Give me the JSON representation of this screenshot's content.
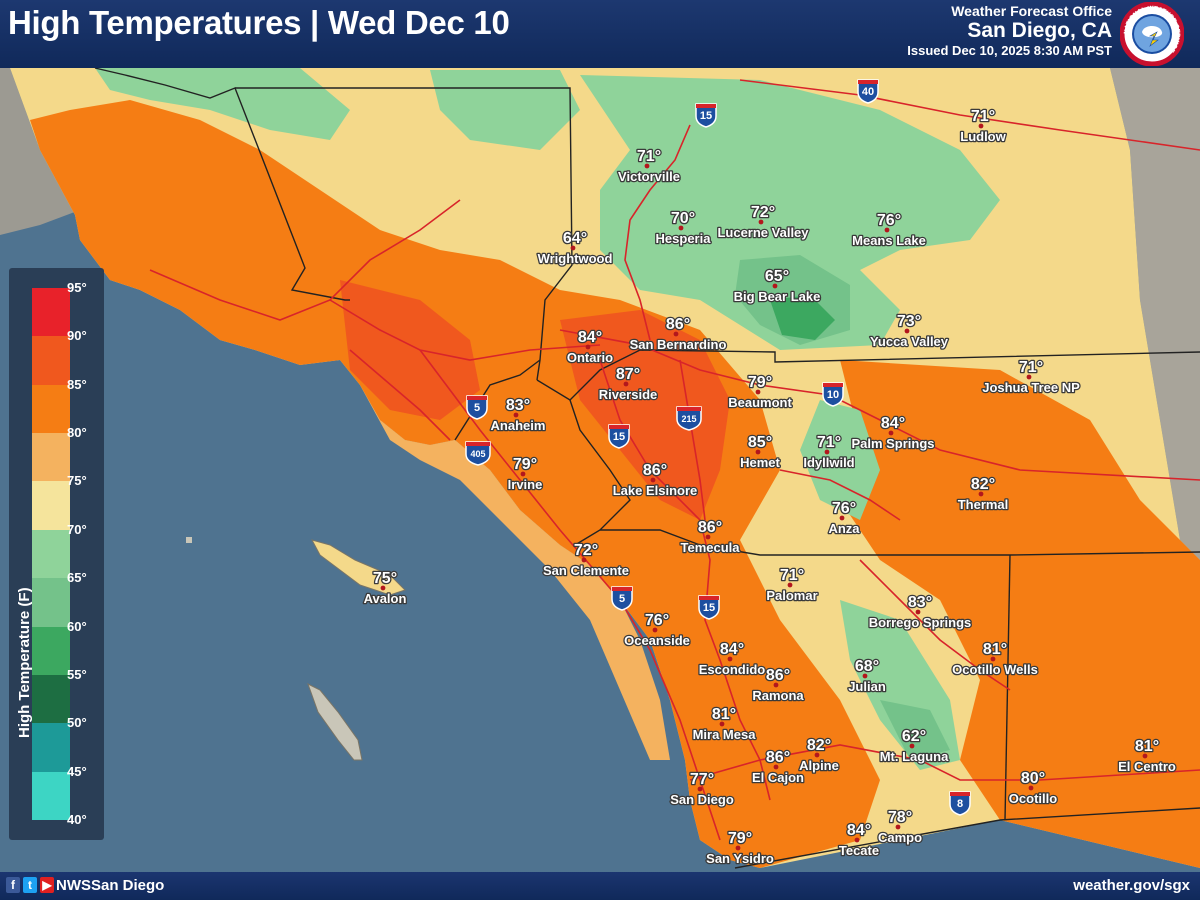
{
  "header": {
    "title": "High Temperatures | Wed Dec 10",
    "office_line1": "Weather Forecast Office",
    "office_line2": "San Diego, CA",
    "issued": "Issued Dec 10, 2025 8:30 AM PST"
  },
  "seal": {
    "icon": "nws-seal-icon",
    "text": "NATIONAL WEATHER SERVICE"
  },
  "legend": {
    "title": "High Temperature (F)",
    "ticks": [
      "95°",
      "90°",
      "85°",
      "80°",
      "75°",
      "70°",
      "65°",
      "60°",
      "55°",
      "50°",
      "45°",
      "40°"
    ],
    "colors": [
      "#e8222a",
      "#f0581e",
      "#f57d14",
      "#f4b25f",
      "#f5e49c",
      "#8fd39a",
      "#74c28a",
      "#3ca860",
      "#1d6e42",
      "#1d9a98",
      "#3dd5c4"
    ]
  },
  "cities": [
    {
      "name": "Ludlow",
      "temp": "71°"
    },
    {
      "name": "Victorville",
      "temp": "71°"
    },
    {
      "name": "Hesperia",
      "temp": "70°"
    },
    {
      "name": "Lucerne Valley",
      "temp": "72°"
    },
    {
      "name": "Means Lake",
      "temp": "76°"
    },
    {
      "name": "Wrightwood",
      "temp": "64°"
    },
    {
      "name": "Big Bear Lake",
      "temp": "65°"
    },
    {
      "name": "Yucca Valley",
      "temp": "73°"
    },
    {
      "name": "Ontario",
      "temp": "84°"
    },
    {
      "name": "San Bernardino",
      "temp": "86°"
    },
    {
      "name": "Joshua Tree NP",
      "temp": "71°"
    },
    {
      "name": "Riverside",
      "temp": "87°"
    },
    {
      "name": "Beaumont",
      "temp": "79°"
    },
    {
      "name": "Anaheim",
      "temp": "83°"
    },
    {
      "name": "Palm Springs",
      "temp": "84°"
    },
    {
      "name": "Hemet",
      "temp": "85°"
    },
    {
      "name": "Idyllwild",
      "temp": "71°"
    },
    {
      "name": "Irvine",
      "temp": "79°"
    },
    {
      "name": "Lake Elsinore",
      "temp": "86°"
    },
    {
      "name": "Thermal",
      "temp": "82°"
    },
    {
      "name": "Anza",
      "temp": "76°"
    },
    {
      "name": "Temecula",
      "temp": "86°"
    },
    {
      "name": "San Clemente",
      "temp": "72°"
    },
    {
      "name": "Avalon",
      "temp": "75°"
    },
    {
      "name": "Palomar",
      "temp": "71°"
    },
    {
      "name": "Oceanside",
      "temp": "76°"
    },
    {
      "name": "Borrego Springs",
      "temp": "83°"
    },
    {
      "name": "Escondido",
      "temp": "84°"
    },
    {
      "name": "Ocotillo Wells",
      "temp": "81°"
    },
    {
      "name": "Ramona",
      "temp": "86°"
    },
    {
      "name": "Julian",
      "temp": "68°"
    },
    {
      "name": "Mira Mesa",
      "temp": "81°"
    },
    {
      "name": "Mt. Laguna",
      "temp": "62°"
    },
    {
      "name": "El Cajon",
      "temp": "86°"
    },
    {
      "name": "Alpine",
      "temp": "82°"
    },
    {
      "name": "San Diego",
      "temp": "77°"
    },
    {
      "name": "El Centro",
      "temp": "81°"
    },
    {
      "name": "Ocotillo",
      "temp": "80°"
    },
    {
      "name": "Campo",
      "temp": "78°"
    },
    {
      "name": "Tecate",
      "temp": "84°"
    },
    {
      "name": "San Ysidro",
      "temp": "79°"
    }
  ],
  "highways": [
    "40",
    "15",
    "10",
    "5",
    "15",
    "215",
    "405",
    "5",
    "15",
    "8"
  ],
  "footer": {
    "handle": "NWSSan Diego",
    "website": "weather.gov/sgx",
    "icons": [
      "facebook-icon",
      "twitter-icon",
      "youtube-icon"
    ]
  }
}
